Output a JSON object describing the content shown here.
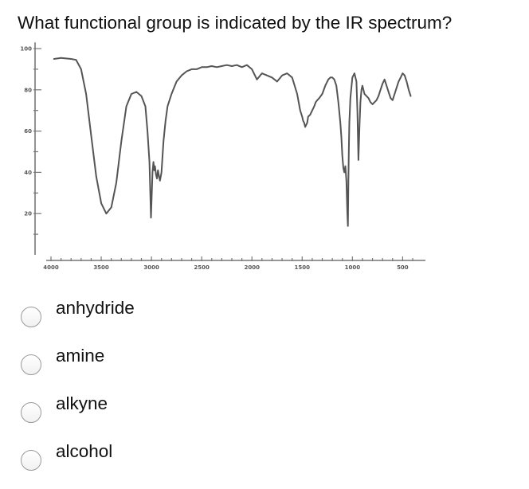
{
  "question": {
    "text": "What functional group is indicated by the IR spectrum?"
  },
  "chart_data": {
    "type": "line",
    "title": "",
    "xlabel": "",
    "ylabel": "",
    "xlim": [
      4000,
      400
    ],
    "ylim": [
      0,
      100
    ],
    "x_reversed": true,
    "grid": false,
    "color": "#555555",
    "x_ticks": [
      4000,
      3500,
      3000,
      2500,
      2000,
      1500,
      1000,
      500
    ],
    "x_tick_labels": [
      "4000",
      "3500",
      "3000",
      "2500",
      "2000",
      "1500",
      "1000",
      "500"
    ],
    "y_ticks": [
      20,
      40,
      60,
      80,
      100
    ],
    "y_tick_labels": [
      "20",
      "40",
      "60",
      "80",
      "100"
    ],
    "series": [
      {
        "x": [
          3970,
          3900,
          3800,
          3750,
          3700,
          3650,
          3600,
          3550,
          3500,
          3450,
          3400,
          3350,
          3300,
          3250,
          3200,
          3150,
          3100,
          3060,
          3040,
          3020,
          3005,
          2990,
          2980,
          2972,
          2965,
          2955,
          2945,
          2935,
          2925,
          2915,
          2900,
          2880,
          2860,
          2840,
          2800,
          2750,
          2700,
          2650,
          2600,
          2550,
          2500,
          2450,
          2400,
          2350,
          2300,
          2250,
          2200,
          2150,
          2100,
          2050,
          2000,
          1950,
          1900,
          1850,
          1800,
          1750,
          1700,
          1650,
          1600,
          1550,
          1520,
          1500,
          1490,
          1480,
          1470,
          1460,
          1450,
          1440,
          1420,
          1400,
          1380,
          1365,
          1350,
          1330,
          1300,
          1270,
          1240,
          1220,
          1200,
          1180,
          1160,
          1140,
          1120,
          1110,
          1100,
          1090,
          1080,
          1070,
          1060,
          1055,
          1050,
          1045,
          1040,
          1035,
          1030,
          1020,
          1000,
          980,
          960,
          950,
          940,
          930,
          920,
          910,
          900,
          890,
          880,
          860,
          840,
          820,
          800,
          780,
          760,
          740,
          720,
          700,
          680,
          660,
          640,
          620,
          600,
          580,
          560,
          540,
          520,
          500,
          480,
          460,
          440,
          420
        ],
        "y": [
          95,
          95.5,
          95,
          94.5,
          90,
          78,
          58,
          38,
          25,
          20,
          23,
          35,
          55,
          72,
          78,
          79,
          77,
          72,
          60,
          45,
          18,
          40,
          45,
          41,
          43,
          39,
          37,
          41,
          38,
          36,
          40,
          55,
          65,
          72,
          78,
          84,
          87,
          89,
          90,
          90,
          91,
          91,
          91.5,
          91,
          91.5,
          92,
          91.5,
          92,
          91,
          92,
          90,
          85,
          88,
          87,
          86,
          84,
          87,
          88,
          86,
          78,
          70,
          67,
          65,
          64,
          62,
          63,
          64,
          67,
          68,
          70,
          72,
          74,
          75,
          76,
          78,
          82,
          85,
          86,
          86,
          85,
          82,
          74,
          64,
          57,
          48,
          42,
          40,
          43,
          36,
          28,
          20,
          14,
          36,
          52,
          64,
          76,
          86,
          88,
          84,
          70,
          46,
          62,
          74,
          80,
          82,
          80,
          78,
          77,
          76,
          74,
          73,
          74,
          75,
          77,
          80,
          83,
          85,
          82,
          79,
          76,
          75,
          78,
          81,
          84,
          86,
          88,
          87,
          84,
          80,
          77
        ]
      }
    ]
  },
  "options": [
    {
      "label": "anhydride",
      "selected": false
    },
    {
      "label": "amine",
      "selected": false
    },
    {
      "label": "alkyne",
      "selected": false
    },
    {
      "label": "alcohol",
      "selected": false
    }
  ]
}
